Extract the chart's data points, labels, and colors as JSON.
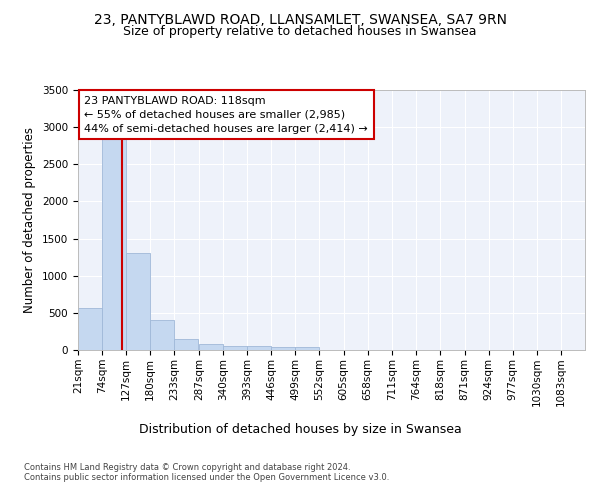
{
  "title": "23, PANTYBLAWD ROAD, LLANSAMLET, SWANSEA, SA7 9RN",
  "subtitle": "Size of property relative to detached houses in Swansea",
  "xlabel": "Distribution of detached houses by size in Swansea",
  "ylabel": "Number of detached properties",
  "bin_labels": [
    "21sqm",
    "74sqm",
    "127sqm",
    "180sqm",
    "233sqm",
    "287sqm",
    "340sqm",
    "393sqm",
    "446sqm",
    "499sqm",
    "552sqm",
    "605sqm",
    "658sqm",
    "711sqm",
    "764sqm",
    "818sqm",
    "871sqm",
    "924sqm",
    "977sqm",
    "1030sqm",
    "1083sqm"
  ],
  "bin_edges": [
    21,
    74,
    127,
    180,
    233,
    287,
    340,
    393,
    446,
    499,
    552,
    605,
    658,
    711,
    764,
    818,
    871,
    924,
    977,
    1030,
    1083
  ],
  "bar_heights": [
    570,
    2910,
    1310,
    410,
    150,
    80,
    60,
    55,
    45,
    40,
    0,
    0,
    0,
    0,
    0,
    0,
    0,
    0,
    0,
    0
  ],
  "bar_color": "#c5d8f0",
  "bar_edge_color": "#a0b8d8",
  "property_size": 118,
  "vline_color": "#cc0000",
  "annotation_text": "23 PANTYBLAWD ROAD: 118sqm\n← 55% of detached houses are smaller (2,985)\n44% of semi-detached houses are larger (2,414) →",
  "annotation_box_color": "#ffffff",
  "annotation_box_edgecolor": "#cc0000",
  "ylim": [
    0,
    3500
  ],
  "yticks": [
    0,
    500,
    1000,
    1500,
    2000,
    2500,
    3000,
    3500
  ],
  "title_fontsize": 10,
  "subtitle_fontsize": 9,
  "xlabel_fontsize": 9,
  "ylabel_fontsize": 8.5,
  "tick_fontsize": 7.5,
  "footer_text": "Contains HM Land Registry data © Crown copyright and database right 2024.\nContains public sector information licensed under the Open Government Licence v3.0.",
  "background_color": "#eef2fa",
  "grid_color": "#ffffff"
}
